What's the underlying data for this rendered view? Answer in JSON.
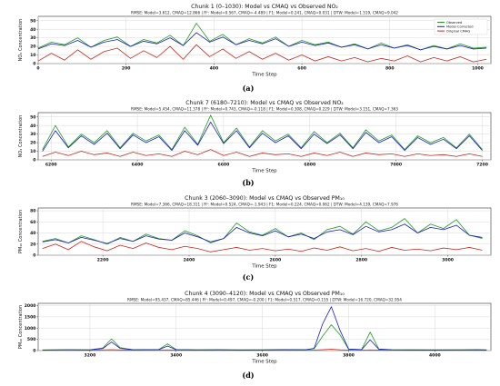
{
  "chart_data": [
    {
      "type": "line",
      "label": "(a)",
      "title": "Chunk 1 (0–1030): Model vs CMAQ vs Observed NO₂",
      "metrics": "RMSE: Model=3.612, CMAQ=12.866 | R²: Model=0.567, CMAQ=-4.489 | F1: Model=0.241, CMAQ=0.031 | DTW: Model=1.519, CMAQ=9.042",
      "xlabel": "Time Step",
      "ylabel": "NO₂ Concentration",
      "xlim": [
        0,
        1030
      ],
      "ylim": [
        0,
        55
      ],
      "xticks": [
        0,
        200,
        400,
        600,
        800,
        1000
      ],
      "yticks": [
        0,
        10,
        20,
        30,
        40,
        50
      ],
      "legend": [
        "Observed",
        "Model Corrected",
        "Original CMAQ"
      ],
      "legend_position": "top-right",
      "series": [
        {
          "name": "Observed",
          "x": [
            0,
            30,
            60,
            90,
            120,
            150,
            180,
            210,
            240,
            270,
            300,
            330,
            360,
            390,
            420,
            450,
            480,
            510,
            540,
            570,
            600,
            630,
            660,
            690,
            720,
            750,
            780,
            810,
            840,
            870,
            900,
            930,
            960,
            990,
            1020
          ],
          "values": [
            18,
            25,
            22,
            30,
            19,
            27,
            31,
            20,
            28,
            24,
            33,
            21,
            47,
            26,
            34,
            22,
            29,
            24,
            31,
            20,
            27,
            22,
            25,
            19,
            23,
            17,
            24,
            18,
            22,
            16,
            21,
            17,
            23,
            18,
            19
          ]
        },
        {
          "name": "Model Corrected",
          "x": [
            0,
            30,
            60,
            90,
            120,
            150,
            180,
            210,
            240,
            270,
            300,
            330,
            360,
            390,
            420,
            450,
            480,
            510,
            540,
            570,
            600,
            630,
            660,
            690,
            720,
            750,
            780,
            810,
            840,
            870,
            900,
            930,
            960,
            990,
            1020
          ],
          "values": [
            17,
            23,
            21,
            27,
            19,
            25,
            28,
            20,
            26,
            23,
            30,
            21,
            36,
            25,
            31,
            22,
            27,
            23,
            29,
            20,
            25,
            21,
            24,
            19,
            22,
            17,
            22,
            18,
            21,
            16,
            20,
            17,
            21,
            17,
            18
          ]
        },
        {
          "name": "Original CMAQ",
          "x": [
            0,
            30,
            60,
            90,
            120,
            150,
            180,
            210,
            240,
            270,
            300,
            330,
            360,
            390,
            420,
            450,
            480,
            510,
            540,
            570,
            600,
            630,
            660,
            690,
            720,
            750,
            780,
            810,
            840,
            870,
            900,
            930,
            960,
            990,
            1020
          ],
          "values": [
            3,
            12,
            4,
            16,
            5,
            14,
            18,
            6,
            15,
            7,
            20,
            5,
            22,
            8,
            17,
            6,
            14,
            5,
            12,
            4,
            10,
            3,
            8,
            3,
            7,
            2,
            6,
            3,
            9,
            2,
            7,
            3,
            8,
            2,
            5
          ]
        }
      ]
    },
    {
      "type": "line",
      "label": "(b)",
      "title": "Chunk 7 (6180–7210): Model vs CMAQ vs Observed NO₂",
      "metrics": "RMSE: Model=5.454, CMAQ=11.378 | R²: Model=0.743, CMAQ=-0.118 | F1: Model=0.308, CMAQ=0.229 | DTW: Model=3.151, CMAQ=7.363",
      "xlabel": "Time Step",
      "ylabel": "NO₂ Concentration",
      "xlim": [
        6170,
        7220
      ],
      "ylim": [
        0,
        55
      ],
      "xticks": [
        6200,
        6400,
        6600,
        6800,
        7000,
        7200
      ],
      "yticks": [
        0,
        10,
        20,
        30,
        40,
        50
      ],
      "series": [
        {
          "name": "Observed",
          "x": [
            6180,
            6210,
            6240,
            6270,
            6300,
            6330,
            6360,
            6390,
            6420,
            6450,
            6480,
            6510,
            6540,
            6570,
            6600,
            6630,
            6660,
            6690,
            6720,
            6750,
            6780,
            6810,
            6840,
            6870,
            6900,
            6930,
            6960,
            6990,
            7020,
            7050,
            7080,
            7110,
            7140,
            7170,
            7200
          ],
          "values": [
            12,
            40,
            15,
            30,
            20,
            34,
            14,
            31,
            22,
            29,
            12,
            38,
            18,
            52,
            20,
            37,
            15,
            34,
            22,
            30,
            14,
            33,
            20,
            31,
            14,
            35,
            22,
            29,
            12,
            28,
            20,
            26,
            14,
            30,
            12
          ]
        },
        {
          "name": "Model Corrected",
          "x": [
            6180,
            6210,
            6240,
            6270,
            6300,
            6330,
            6360,
            6390,
            6420,
            6450,
            6480,
            6510,
            6540,
            6570,
            6600,
            6630,
            6660,
            6690,
            6720,
            6750,
            6780,
            6810,
            6840,
            6870,
            6900,
            6930,
            6960,
            6990,
            7020,
            7050,
            7080,
            7110,
            7140,
            7170,
            7200
          ],
          "values": [
            10,
            34,
            14,
            28,
            18,
            31,
            13,
            29,
            20,
            27,
            11,
            34,
            17,
            44,
            19,
            34,
            14,
            31,
            20,
            28,
            13,
            30,
            19,
            29,
            13,
            32,
            20,
            27,
            11,
            26,
            18,
            24,
            13,
            28,
            11
          ]
        },
        {
          "name": "Original CMAQ",
          "x": [
            6180,
            6210,
            6240,
            6270,
            6300,
            6330,
            6360,
            6390,
            6420,
            6450,
            6480,
            6510,
            6540,
            6570,
            6600,
            6630,
            6660,
            6690,
            6720,
            6750,
            6780,
            6810,
            6840,
            6870,
            6900,
            6930,
            6960,
            6990,
            7020,
            7050,
            7080,
            7110,
            7140,
            7170,
            7200
          ],
          "values": [
            4,
            9,
            5,
            10,
            6,
            8,
            4,
            9,
            5,
            7,
            4,
            10,
            6,
            12,
            5,
            9,
            4,
            8,
            6,
            7,
            4,
            8,
            5,
            9,
            4,
            8,
            6,
            7,
            4,
            7,
            5,
            6,
            4,
            7,
            4
          ]
        }
      ]
    },
    {
      "type": "line",
      "label": "(c)",
      "title": "Chunk 3 (2060–3090): Model vs CMAQ vs Observed PM₁₀",
      "metrics": "RMSE: Model=7.366, CMAQ=18.311 | R²: Model=0.524, CMAQ=-1.943 | F1: Model=0.224, CMAQ=0.062 | DTW: Model=4.139, CMAQ=7.976",
      "xlabel": "Time Step",
      "ylabel": "PM₁₀ Concentration",
      "xlim": [
        2050,
        3100
      ],
      "ylim": [
        0,
        85
      ],
      "xticks": [
        2200,
        2400,
        2600,
        2800,
        3000
      ],
      "yticks": [
        0,
        20,
        40,
        60,
        80
      ],
      "series": [
        {
          "name": "Observed",
          "x": [
            2060,
            2090,
            2120,
            2150,
            2180,
            2210,
            2240,
            2270,
            2300,
            2330,
            2360,
            2390,
            2420,
            2450,
            2480,
            2510,
            2540,
            2570,
            2600,
            2630,
            2660,
            2690,
            2720,
            2750,
            2780,
            2810,
            2840,
            2870,
            2900,
            2930,
            2960,
            2990,
            3020,
            3050,
            3080
          ],
          "values": [
            25,
            30,
            22,
            35,
            28,
            20,
            32,
            25,
            38,
            30,
            27,
            44,
            35,
            22,
            30,
            58,
            42,
            36,
            48,
            33,
            40,
            28,
            46,
            52,
            38,
            60,
            44,
            50,
            66,
            40,
            56,
            48,
            64,
            36,
            30
          ]
        },
        {
          "name": "Model Corrected",
          "x": [
            2060,
            2090,
            2120,
            2150,
            2180,
            2210,
            2240,
            2270,
            2300,
            2330,
            2360,
            2390,
            2420,
            2450,
            2480,
            2510,
            2540,
            2570,
            2600,
            2630,
            2660,
            2690,
            2720,
            2750,
            2780,
            2810,
            2840,
            2870,
            2900,
            2930,
            2960,
            2990,
            3020,
            3050,
            3080
          ],
          "values": [
            24,
            28,
            22,
            32,
            27,
            21,
            30,
            25,
            35,
            29,
            27,
            40,
            33,
            24,
            30,
            50,
            40,
            35,
            44,
            33,
            38,
            30,
            42,
            46,
            37,
            52,
            42,
            46,
            56,
            40,
            50,
            46,
            54,
            36,
            32
          ]
        },
        {
          "name": "Original CMAQ",
          "x": [
            2060,
            2090,
            2120,
            2150,
            2180,
            2210,
            2240,
            2270,
            2300,
            2330,
            2360,
            2390,
            2420,
            2450,
            2480,
            2510,
            2540,
            2570,
            2600,
            2630,
            2660,
            2690,
            2720,
            2750,
            2780,
            2810,
            2840,
            2870,
            2900,
            2930,
            2960,
            2990,
            3020,
            3050,
            3080
          ],
          "values": [
            12,
            20,
            10,
            25,
            15,
            8,
            18,
            12,
            22,
            14,
            10,
            16,
            12,
            6,
            10,
            14,
            9,
            12,
            8,
            11,
            7,
            13,
            9,
            15,
            8,
            12,
            7,
            14,
            9,
            11,
            8,
            13,
            10,
            14,
            9
          ]
        }
      ]
    },
    {
      "type": "line",
      "label": "(d)",
      "title": "Chunk 4 (3090–4120): Model vs CMAQ vs Observed PM₁₀",
      "metrics": "RMSE: Model=95.437, CMAQ=85.446 | R²: Model=0.497, CMAQ=-0.200 | F1: Model=0.517, CMAQ=0.155 | DTW: Model=16.720, CMAQ=32.954",
      "xlabel": "Time Step",
      "ylabel": "PM₁₀ Concentration",
      "xlim": [
        3080,
        4130
      ],
      "ylim": [
        0,
        2100
      ],
      "xticks": [
        3200,
        3400,
        3600,
        3800,
        4000
      ],
      "yticks": [
        0,
        500,
        1000,
        1500,
        2000
      ],
      "series": [
        {
          "name": "Observed",
          "x": [
            3090,
            3150,
            3200,
            3230,
            3250,
            3270,
            3300,
            3360,
            3380,
            3400,
            3450,
            3500,
            3550,
            3600,
            3650,
            3700,
            3720,
            3740,
            3760,
            3780,
            3800,
            3830,
            3850,
            3870,
            3900,
            3950,
            4000,
            4050,
            4100,
            4120
          ],
          "values": [
            30,
            40,
            35,
            120,
            520,
            130,
            40,
            50,
            300,
            45,
            35,
            40,
            30,
            35,
            45,
            40,
            80,
            650,
            1150,
            700,
            60,
            45,
            820,
            70,
            40,
            35,
            30,
            35,
            40,
            30
          ]
        },
        {
          "name": "Model Corrected",
          "x": [
            3090,
            3150,
            3200,
            3230,
            3250,
            3270,
            3300,
            3360,
            3380,
            3400,
            3450,
            3500,
            3550,
            3600,
            3650,
            3700,
            3720,
            3740,
            3760,
            3780,
            3800,
            3830,
            3850,
            3870,
            3900,
            3950,
            4000,
            4050,
            4100,
            4120
          ],
          "values": [
            25,
            35,
            30,
            90,
            380,
            100,
            35,
            45,
            200,
            40,
            30,
            35,
            28,
            30,
            40,
            35,
            100,
            1200,
            1950,
            900,
            70,
            40,
            480,
            60,
            35,
            30,
            28,
            30,
            35,
            28
          ]
        },
        {
          "name": "Original CMAQ",
          "x": [
            3090,
            3150,
            3200,
            3230,
            3250,
            3270,
            3300,
            3360,
            3380,
            3400,
            3450,
            3500,
            3550,
            3600,
            3650,
            3700,
            3720,
            3740,
            3760,
            3780,
            3800,
            3830,
            3850,
            3870,
            3900,
            3950,
            4000,
            4050,
            4100,
            4120
          ],
          "values": [
            20,
            25,
            22,
            30,
            40,
            28,
            22,
            24,
            30,
            22,
            20,
            22,
            18,
            20,
            22,
            20,
            25,
            40,
            60,
            35,
            22,
            20,
            30,
            22,
            20,
            18,
            18,
            20,
            22,
            18
          ]
        }
      ]
    }
  ],
  "colors": {
    "observed": "#1f9a1f",
    "model": "#1a1acc",
    "cmaq": "#c8281e",
    "frame": "#333333",
    "grid": "#d8d8d8"
  }
}
